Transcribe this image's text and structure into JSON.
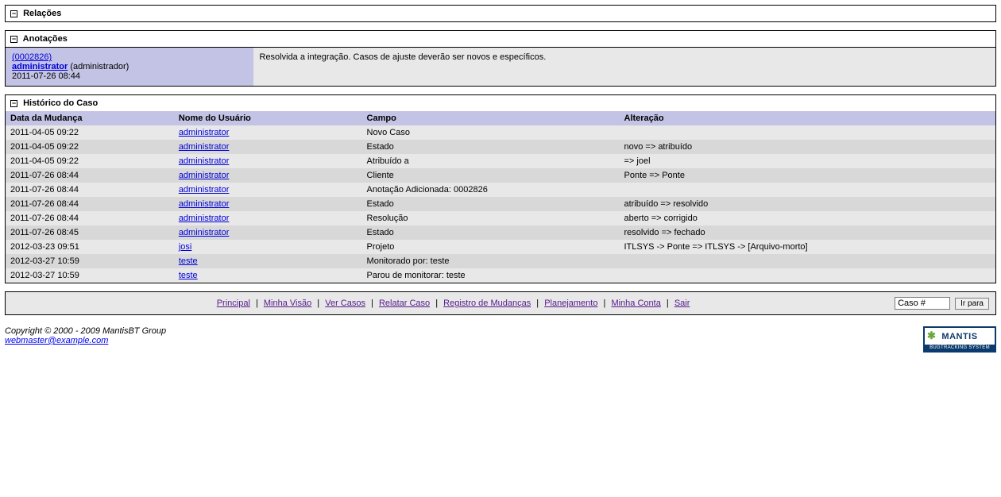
{
  "colors": {
    "panel_border": "#000000",
    "header_lavender": "#c2c3e5",
    "row_odd": "#e8e8e8",
    "row_even": "#d8d8d8",
    "link": "#0000dd",
    "visited_link": "#551a8b",
    "logo_border": "#0b3a6e",
    "logo_green": "#6aa737"
  },
  "relations": {
    "title": "Relações"
  },
  "notes": {
    "title": "Anotações",
    "items": [
      {
        "id": "(0002826)",
        "user": "administrator",
        "role": "(administrador)",
        "timestamp": "2011-07-26 08:44",
        "text": "Resolvida a integração. Casos de ajuste deverão ser novos e específicos."
      }
    ]
  },
  "history": {
    "title": "Histórico do Caso",
    "columns": {
      "date": "Data da Mudança",
      "user": "Nome do Usuário",
      "field": "Campo",
      "change": "Alteração"
    },
    "rows": [
      {
        "date": "2011-04-05 09:22",
        "user": "administrator",
        "field": "Novo Caso",
        "change": ""
      },
      {
        "date": "2011-04-05 09:22",
        "user": "administrator",
        "field": "Estado",
        "change": "novo => atribuído"
      },
      {
        "date": "2011-04-05 09:22",
        "user": "administrator",
        "field": "Atribuído a",
        "change": "=> joel"
      },
      {
        "date": "2011-07-26 08:44",
        "user": "administrator",
        "field": "Cliente",
        "change": "Ponte => Ponte"
      },
      {
        "date": "2011-07-26 08:44",
        "user": "administrator",
        "field": "Anotação Adicionada: 0002826",
        "change": ""
      },
      {
        "date": "2011-07-26 08:44",
        "user": "administrator",
        "field": "Estado",
        "change": "atribuído => resolvido"
      },
      {
        "date": "2011-07-26 08:44",
        "user": "administrator",
        "field": "Resolução",
        "change": "aberto => corrigido"
      },
      {
        "date": "2011-07-26 08:45",
        "user": "administrator",
        "field": "Estado",
        "change": "resolvido => fechado"
      },
      {
        "date": "2012-03-23 09:51",
        "user": "josi",
        "field": "Projeto",
        "change": "ITLSYS -> Ponte => ITLSYS -> [Arquivo-morto]"
      },
      {
        "date": "2012-03-27 10:59",
        "user": "teste",
        "field": "Monitorado por: teste",
        "change": ""
      },
      {
        "date": "2012-03-27 10:59",
        "user": "teste",
        "field": "Parou de monitorar: teste",
        "change": ""
      }
    ]
  },
  "footer": {
    "links": [
      "Principal",
      "Minha Visão",
      "Ver Casos",
      "Relatar Caso",
      "Registro de Mudanças",
      "Planejamento",
      "Minha Conta",
      "Sair"
    ],
    "case_placeholder": "Caso #",
    "go_label": "Ir para"
  },
  "copyright": {
    "text": "Copyright © 2000 - 2009 MantisBT Group",
    "email": "webmaster@example.com",
    "logo_text": "MANTIS",
    "logo_sub": "BUGTRACKING SYSTEM"
  }
}
